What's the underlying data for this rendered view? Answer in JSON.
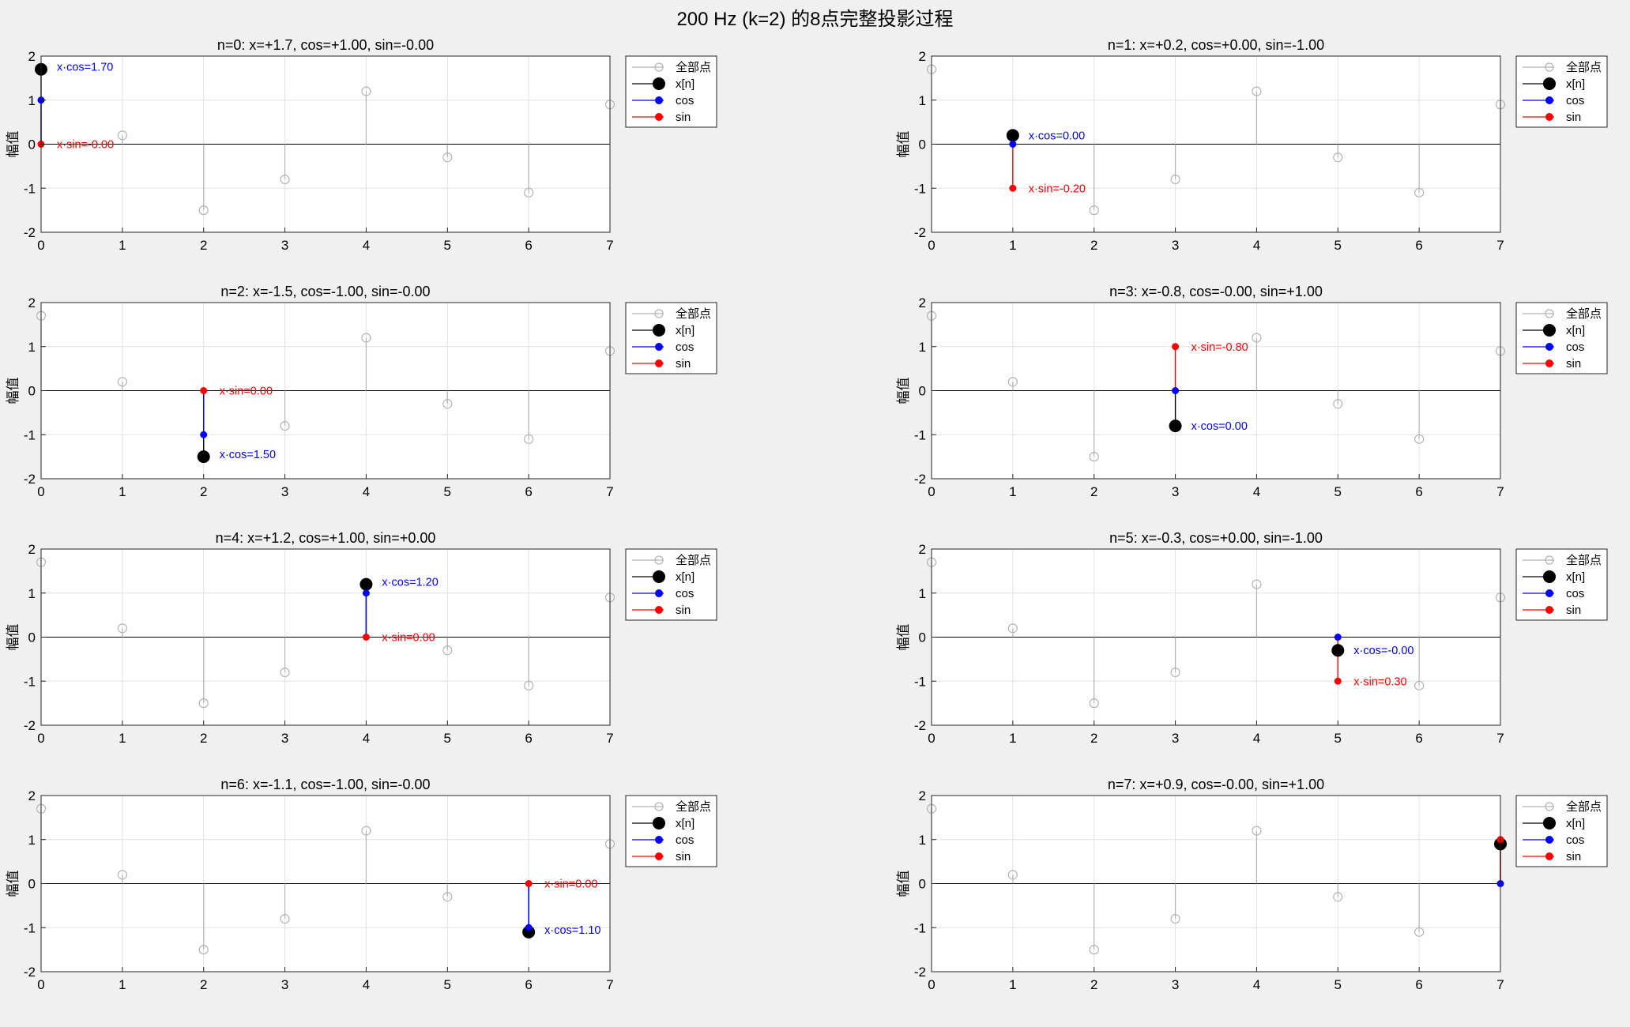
{
  "figure": {
    "title": "200 Hz (k=2) 的8点完整投影过程",
    "background": "#f0f0f0"
  },
  "colors": {
    "all_points": "#b4b4b4",
    "x": "#000000",
    "cos": "#0000ff",
    "sin": "#ff0000",
    "grid": "#e2e2e2"
  },
  "chart_data": {
    "type": "stem",
    "signal_x": [
      1.7,
      0.2,
      -1.5,
      -0.8,
      1.2,
      -0.3,
      -1.1,
      0.9
    ],
    "xlim": [
      0,
      7
    ],
    "ylim": [
      -2,
      2
    ],
    "xticks": [
      "0",
      "1",
      "2",
      "3",
      "4",
      "5",
      "6",
      "7"
    ],
    "yticks": [
      "2",
      "1",
      "0",
      "-1",
      "-2"
    ],
    "ylabel": "幅值",
    "grid": true,
    "legend": {
      "placement": "outside-top-right",
      "entries": [
        "全部点",
        "x[n]",
        "cos",
        "sin"
      ]
    },
    "subplots": [
      {
        "title": "n=0: x=+1.7, cos=+1.00, sin=-0.00",
        "n": 0,
        "x": 1.7,
        "cos": 1.0,
        "sin": 0.0,
        "cos_label": "x·cos=1.70",
        "sin_label": "x·sin=-0.00"
      },
      {
        "title": "n=1: x=+0.2, cos=+0.00, sin=-1.00",
        "n": 1,
        "x": 0.2,
        "cos": 0.0,
        "sin": -1.0,
        "cos_label": "x·cos=0.00",
        "sin_label": "x·sin=-0.20"
      },
      {
        "title": "n=2: x=-1.5, cos=-1.00, sin=-0.00",
        "n": 2,
        "x": -1.5,
        "cos": -1.0,
        "sin": 0.0,
        "cos_label": "x·cos=1.50",
        "sin_label": "x·sin=0.00"
      },
      {
        "title": "n=3: x=-0.8, cos=-0.00, sin=+1.00",
        "n": 3,
        "x": -0.8,
        "cos": 0.0,
        "sin": 1.0,
        "cos_label": "x·cos=0.00",
        "sin_label": "x·sin=-0.80"
      },
      {
        "title": "n=4: x=+1.2, cos=+1.00, sin=+0.00",
        "n": 4,
        "x": 1.2,
        "cos": 1.0,
        "sin": 0.0,
        "cos_label": "x·cos=1.20",
        "sin_label": "x·sin=0.00"
      },
      {
        "title": "n=5: x=-0.3, cos=+0.00, sin=-1.00",
        "n": 5,
        "x": -0.3,
        "cos": 0.0,
        "sin": -1.0,
        "cos_label": "x·cos=-0.00",
        "sin_label": "x·sin=0.30"
      },
      {
        "title": "n=6: x=-1.1, cos=-1.00, sin=-0.00",
        "n": 6,
        "x": -1.1,
        "cos": -1.0,
        "sin": 0.0,
        "cos_label": "x·cos=1.10",
        "sin_label": "x·sin=0.00"
      },
      {
        "title": "n=7: x=+0.9, cos=-0.00, sin=+1.00",
        "n": 7,
        "x": 0.9,
        "cos": 0.0,
        "sin": 1.0,
        "cos_label": "",
        "sin_label": ""
      }
    ]
  }
}
